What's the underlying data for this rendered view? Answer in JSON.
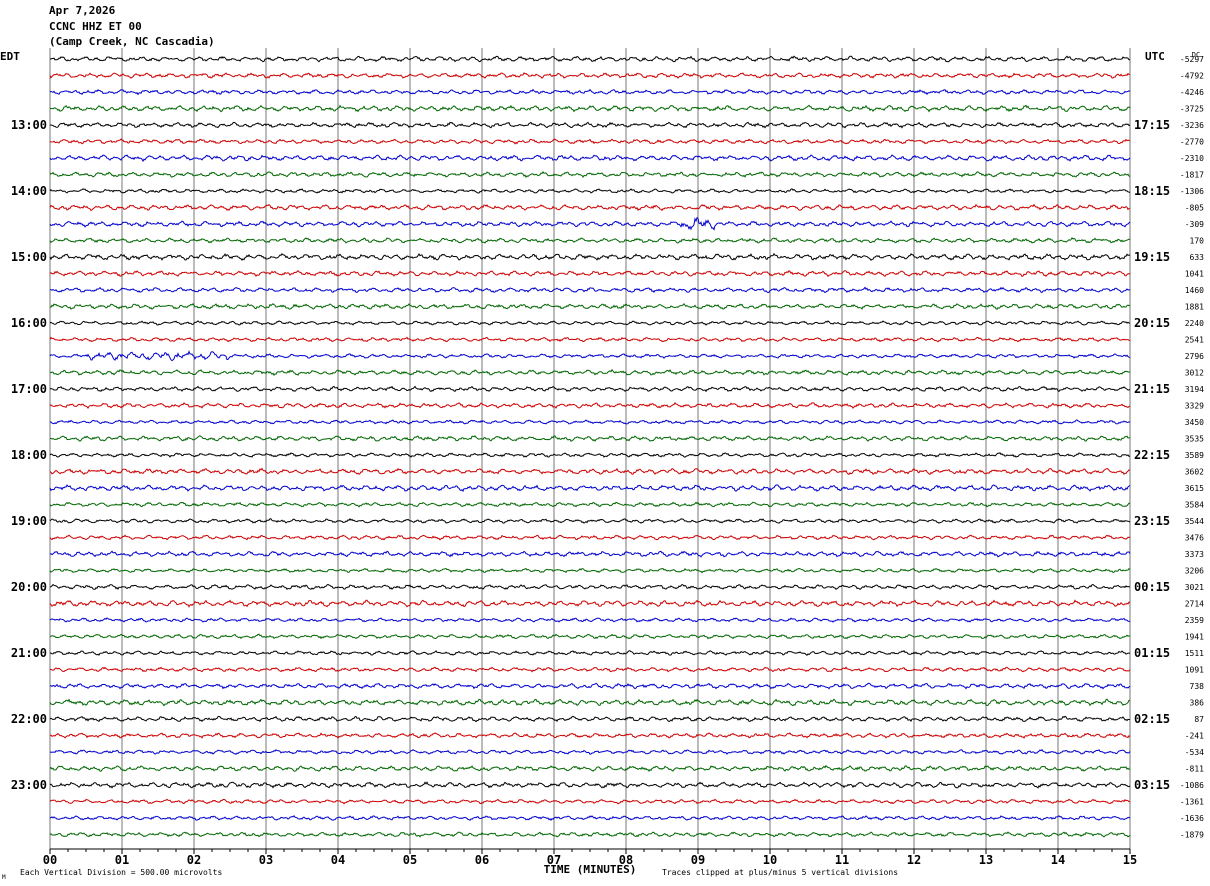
{
  "header": {
    "date": "Apr 7,2026",
    "station": "CCNC HHZ ET 00",
    "location": "(Camp Creek, NC Cascadia)"
  },
  "chart_data": {
    "type": "line",
    "title": "Apr 7,2026 CCNC HHZ ET 00 (Camp Creek, NC Cascadia)",
    "xlabel": "TIME (MINUTES)",
    "x_ticks": [
      "00",
      "01",
      "02",
      "03",
      "04",
      "05",
      "06",
      "07",
      "08",
      "09",
      "10",
      "11",
      "12",
      "13",
      "14",
      "15"
    ],
    "xlim": [
      0,
      15
    ],
    "left_axis_label": "EDT",
    "right_axis_label": "UTC",
    "dc_label": "DC",
    "left_time_labels": [
      "13:00",
      "14:00",
      "15:00",
      "16:00",
      "17:00",
      "18:00",
      "19:00",
      "20:00",
      "21:00",
      "22:00",
      "23:00"
    ],
    "right_time_labels": [
      "17:15",
      "18:15",
      "19:15",
      "20:15",
      "21:15",
      "22:15",
      "23:15",
      "00:15",
      "01:15",
      "02:15",
      "03:15"
    ],
    "trace_count": 48,
    "trace_colors": [
      "#000000",
      "#cc0000",
      "#0000cc",
      "#006600"
    ],
    "dc_offsets": [
      -5297,
      -4792,
      -4246,
      -3725,
      -3236,
      -2770,
      -2310,
      -1817,
      -1306,
      -805,
      -309,
      170,
      633,
      1041,
      1460,
      1881,
      2240,
      2541,
      2796,
      3012,
      3194,
      3329,
      3450,
      3535,
      3589,
      3602,
      3615,
      3584,
      3544,
      3476,
      3373,
      3206,
      3021,
      2714,
      2359,
      1941,
      1511,
      1091,
      738,
      386,
      87,
      -241,
      -534,
      -811,
      -1086,
      -1361,
      -1636,
      -1879
    ],
    "footer_left": "Each Vertical Division =  500.00 microvolts",
    "footer_right": "Traces clipped at plus/minus 5 vertical divisions",
    "corner_mark": "M"
  }
}
